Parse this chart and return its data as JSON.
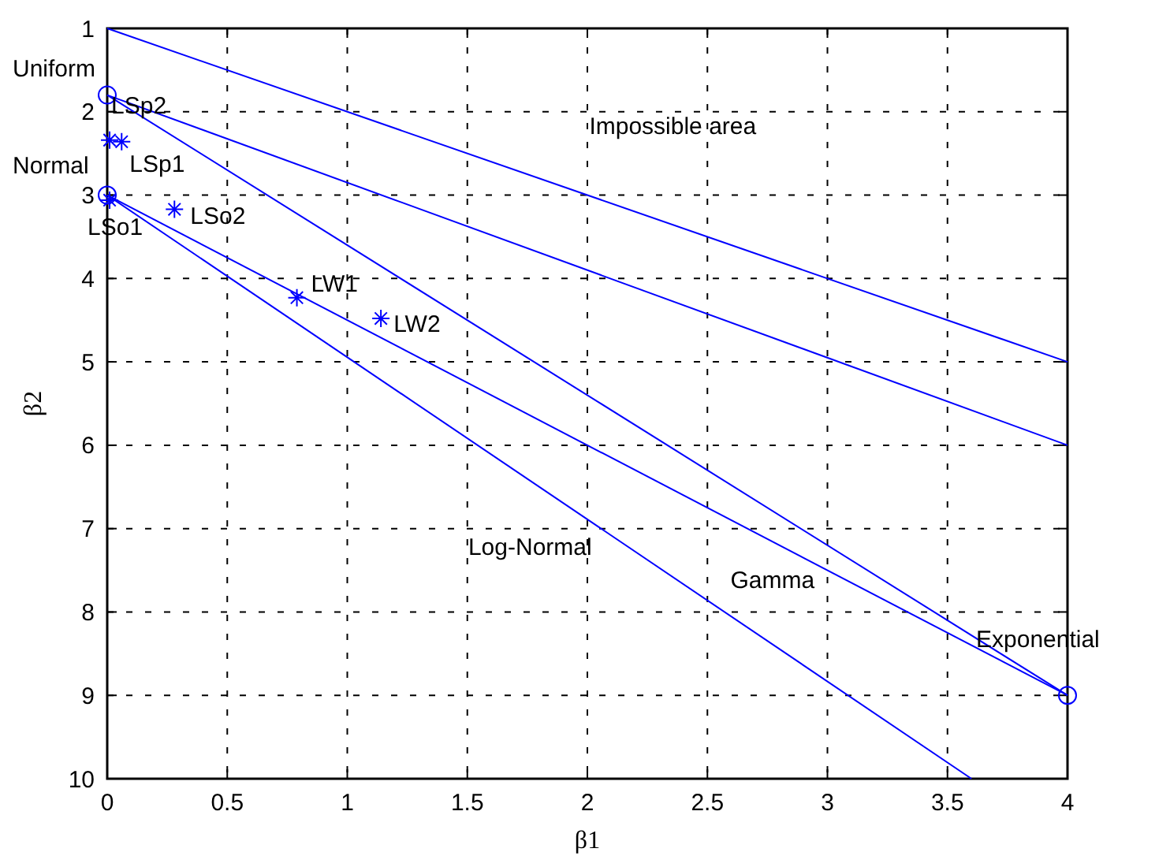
{
  "chart_data": {
    "type": "line",
    "xlabel": "β1",
    "ylabel": "β2",
    "xlim": [
      0,
      4
    ],
    "ylim": [
      10,
      1
    ],
    "xticks": [
      0,
      0.5,
      1,
      1.5,
      2,
      2.5,
      3,
      3.5,
      4
    ],
    "yticks": [
      1,
      2,
      3,
      4,
      5,
      6,
      7,
      8,
      9,
      10
    ],
    "grid": true,
    "series": [
      {
        "color": "#0000ff",
        "x": [
          0,
          4
        ],
        "values": [
          1,
          5
        ]
      },
      {
        "color": "#0000ff",
        "x": [
          0,
          4
        ],
        "values": [
          1.8,
          6
        ]
      },
      {
        "color": "#0000ff",
        "x": [
          0,
          4
        ],
        "values": [
          1.8,
          9
        ]
      },
      {
        "color": "#0000ff",
        "x": [
          0,
          4
        ],
        "values": [
          3,
          9
        ]
      },
      {
        "color": "#0000ff",
        "x": [
          0,
          3.6
        ],
        "values": [
          3,
          10
        ]
      },
      {
        "type": "scatter",
        "marker": "circle",
        "color": "#0000ff",
        "x": [
          0,
          0,
          4
        ],
        "values": [
          1.8,
          3,
          9
        ]
      },
      {
        "type": "scatter",
        "marker": "cross",
        "color": "#0000ff",
        "x": [
          0.01,
          0.06,
          0.01,
          0.28,
          0.79,
          1.14
        ],
        "values": [
          2.34,
          2.36,
          3.06,
          3.17,
          4.23,
          4.48
        ]
      }
    ],
    "annotations": [
      {
        "text": "Uniform",
        "x": 0,
        "y": 1.8
      },
      {
        "text": "LSp2",
        "x": 0.01,
        "y": 2.34
      },
      {
        "text": "LSp1",
        "x": 0.06,
        "y": 2.36
      },
      {
        "text": "Normal",
        "x": 0,
        "y": 3
      },
      {
        "text": "LSo1",
        "x": 0.01,
        "y": 3.06
      },
      {
        "text": "LSo2",
        "x": 0.28,
        "y": 3.17
      },
      {
        "text": "LW1",
        "x": 0.79,
        "y": 4.23
      },
      {
        "text": "LW2",
        "x": 1.14,
        "y": 4.48
      },
      "Impossible area",
      "Log-Normal",
      "Gamma",
      {
        "text": "Exponential",
        "x": 4,
        "y": 9
      }
    ]
  }
}
